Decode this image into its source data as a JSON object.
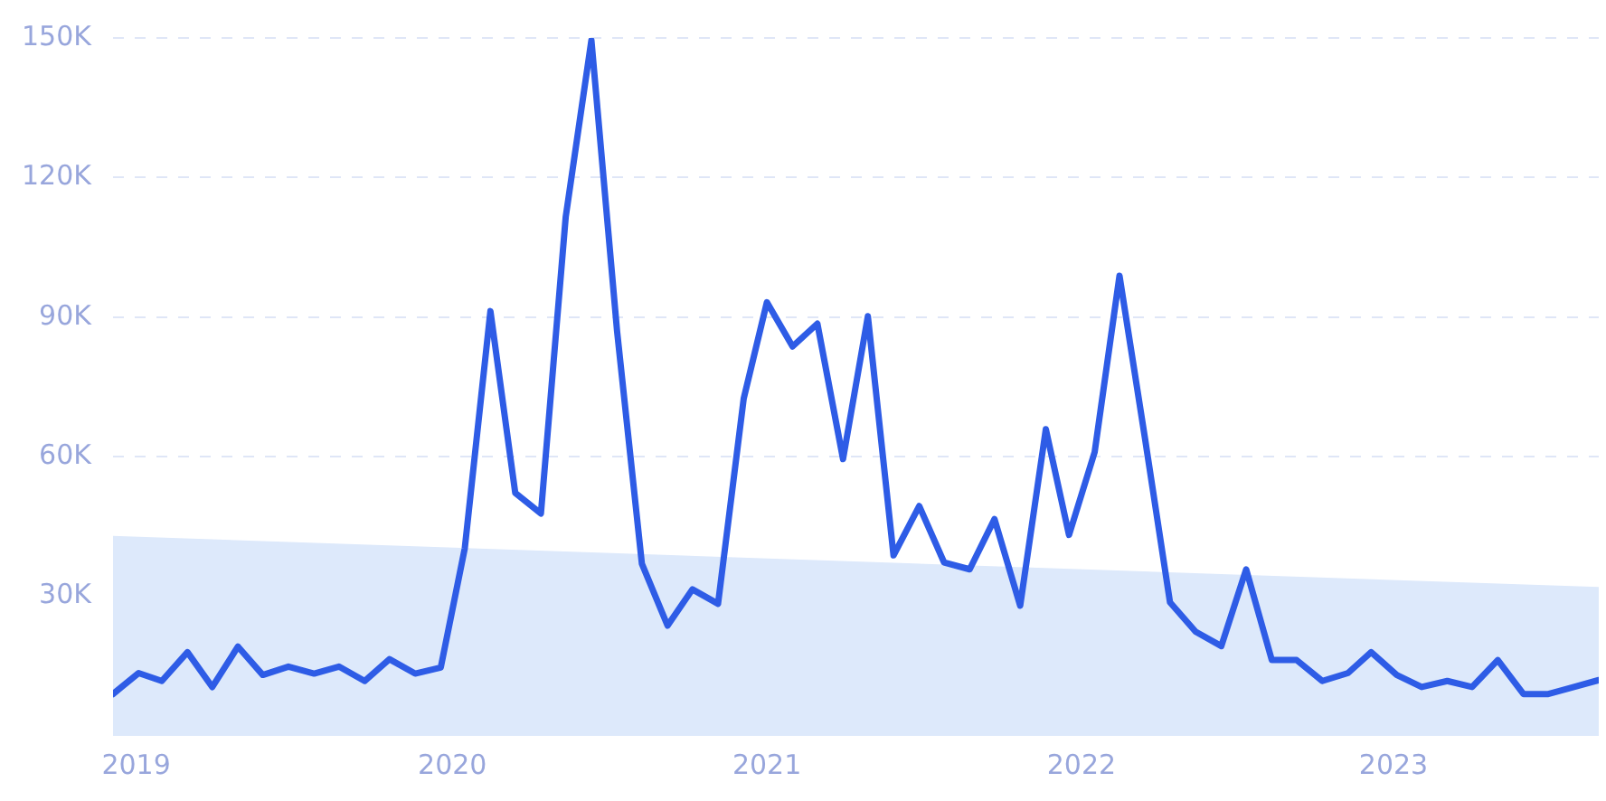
{
  "chart_data": {
    "type": "line",
    "x": [
      "2019-01",
      "2019-02",
      "2019-03",
      "2019-04",
      "2019-05",
      "2019-06",
      "2019-07",
      "2019-08",
      "2019-09",
      "2019-10",
      "2019-11",
      "2019-12",
      "2020-01",
      "2020-02",
      "2020-03",
      "2020-04",
      "2020-05",
      "2020-06",
      "2020-07",
      "2020-08",
      "2020-09",
      "2020-10",
      "2020-11",
      "2020-12",
      "2021-01",
      "2021-02",
      "2021-03",
      "2021-04",
      "2021-05",
      "2021-06",
      "2021-07",
      "2021-08",
      "2021-09",
      "2021-10",
      "2021-11",
      "2021-12",
      "2022-01",
      "2022-02",
      "2022-03",
      "2022-04",
      "2022-05",
      "2022-06",
      "2022-07",
      "2022-08",
      "2022-09",
      "2022-10",
      "2022-11",
      "2022-12",
      "2023-01",
      "2023-02",
      "2023-03",
      "2023-04",
      "2023-05",
      "2023-06",
      "2023-07",
      "2023-08",
      "2023-09",
      "2023-10",
      "2023-11",
      "2023-12"
    ],
    "series": [
      {
        "type": "area",
        "color": "#dde9fb",
        "x": [
          "2019-01",
          "2023-12"
        ],
        "values": [
          43000,
          32000
        ]
      },
      {
        "color": "#2e5ce6",
        "values": [
          9000,
          13500,
          11800,
          18000,
          10500,
          19200,
          13100,
          14900,
          13400,
          14900,
          11800,
          16500,
          13400,
          14700,
          40300,
          91300,
          52200,
          47800,
          111600,
          149500,
          87000,
          37000,
          23700,
          31500,
          28400,
          72500,
          93200,
          83700,
          88600,
          59500,
          90200,
          38800,
          49400,
          37300,
          35800,
          46600,
          28000,
          65900,
          43200,
          61000,
          98900,
          63700,
          28700,
          22400,
          19300,
          35800,
          16300,
          16300,
          11800,
          13500,
          18000,
          13100,
          10500,
          11800,
          10500,
          16300,
          9000,
          9000,
          10500,
          12000
        ]
      }
    ],
    "xlim": [
      "2019-01",
      "2023-12"
    ],
    "xticks": [
      {
        "value": "2019-01-29",
        "label": "2019"
      },
      {
        "value": "2020-02-15",
        "label": "2020"
      },
      {
        "value": "2021-03-01",
        "label": "2021"
      },
      {
        "value": "2022-03-16",
        "label": "2022"
      },
      {
        "value": "2023-03-28",
        "label": "2023"
      }
    ],
    "ylim": [
      0,
      150000
    ],
    "yticks": [
      {
        "value": 30000,
        "label": "30K"
      },
      {
        "value": 60000,
        "label": "60K"
      },
      {
        "value": 90000,
        "label": "90K"
      },
      {
        "value": 120000,
        "label": "120K"
      },
      {
        "value": 150000,
        "label": "150K"
      }
    ],
    "grid": "y",
    "legend": false,
    "marker": "none",
    "line_style": "solid"
  }
}
